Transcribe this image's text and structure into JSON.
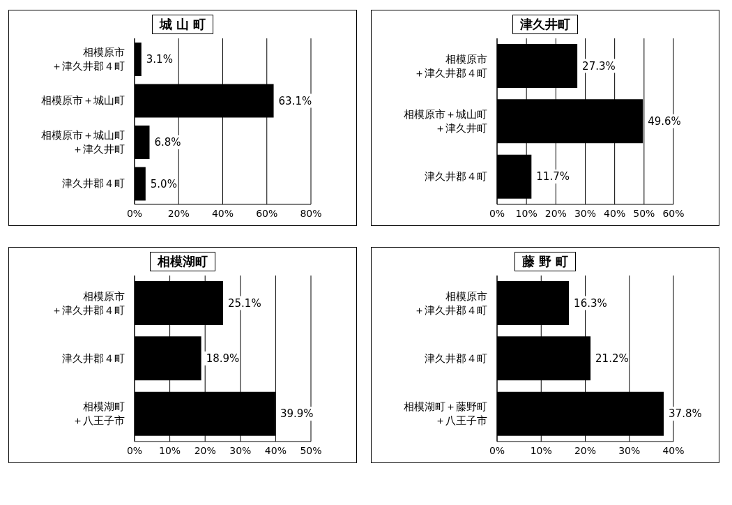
{
  "chart_data": [
    {
      "type": "bar",
      "orientation": "horizontal",
      "title": "城 山 町",
      "categories": [
        "相模原市＋津久井郡４町",
        "相模原市＋城山町",
        "相模原市＋城山町＋津久井町",
        "津久井郡４町"
      ],
      "values": [
        3.1,
        63.1,
        6.8,
        5.0
      ],
      "value_labels": [
        "3.1%",
        "63.1%",
        "6.8%",
        "5.0%"
      ],
      "color": "#000000",
      "xlim": [
        0,
        80
      ],
      "xticks": [
        {
          "value": 0,
          "label": "0%"
        },
        {
          "value": 20,
          "label": "20%"
        },
        {
          "value": 40,
          "label": "40%"
        },
        {
          "value": 60,
          "label": "60%"
        },
        {
          "value": 80,
          "label": "80%"
        }
      ],
      "grid": "x",
      "legend": false
    },
    {
      "type": "bar",
      "orientation": "horizontal",
      "title": "津久井町",
      "categories": [
        "相模原市＋津久井郡４町",
        "相模原市＋城山町＋津久井町",
        "津久井郡４町"
      ],
      "values": [
        27.3,
        49.6,
        11.7
      ],
      "value_labels": [
        "27.3%",
        "49.6%",
        "11.7%"
      ],
      "color": "#000000",
      "xlim": [
        0,
        60
      ],
      "xticks": [
        {
          "value": 0,
          "label": "0%"
        },
        {
          "value": 10,
          "label": "10%"
        },
        {
          "value": 20,
          "label": "20%"
        },
        {
          "value": 30,
          "label": "30%"
        },
        {
          "value": 40,
          "label": "40%"
        },
        {
          "value": 50,
          "label": "50%"
        },
        {
          "value": 60,
          "label": "60%"
        }
      ],
      "grid": "x",
      "legend": false
    },
    {
      "type": "bar",
      "orientation": "horizontal",
      "title": "相模湖町",
      "categories": [
        "相模原市＋津久井郡４町",
        "津久井郡４町",
        "相模湖町＋八王子市"
      ],
      "values": [
        25.1,
        18.9,
        39.9
      ],
      "value_labels": [
        "25.1%",
        "18.9%",
        "39.9%"
      ],
      "color": "#000000",
      "xlim": [
        0,
        50
      ],
      "xticks": [
        {
          "value": 0,
          "label": "0%"
        },
        {
          "value": 10,
          "label": "10%"
        },
        {
          "value": 20,
          "label": "20%"
        },
        {
          "value": 30,
          "label": "30%"
        },
        {
          "value": 40,
          "label": "40%"
        },
        {
          "value": 50,
          "label": "50%"
        }
      ],
      "grid": "x",
      "legend": false
    },
    {
      "type": "bar",
      "orientation": "horizontal",
      "title": "藤 野 町",
      "categories": [
        "相模原市＋津久井郡４町",
        "津久井郡４町",
        "相模湖町＋藤野町＋八王子市"
      ],
      "values": [
        16.3,
        21.2,
        37.8
      ],
      "value_labels": [
        "16.3%",
        "21.2%",
        "37.8%"
      ],
      "color": "#000000",
      "xlim": [
        0,
        40
      ],
      "xticks": [
        {
          "value": 0,
          "label": "0%"
        },
        {
          "value": 10,
          "label": "10%"
        },
        {
          "value": 20,
          "label": "20%"
        },
        {
          "value": 30,
          "label": "30%"
        },
        {
          "value": 40,
          "label": "40%"
        }
      ],
      "grid": "x",
      "legend": false
    }
  ]
}
